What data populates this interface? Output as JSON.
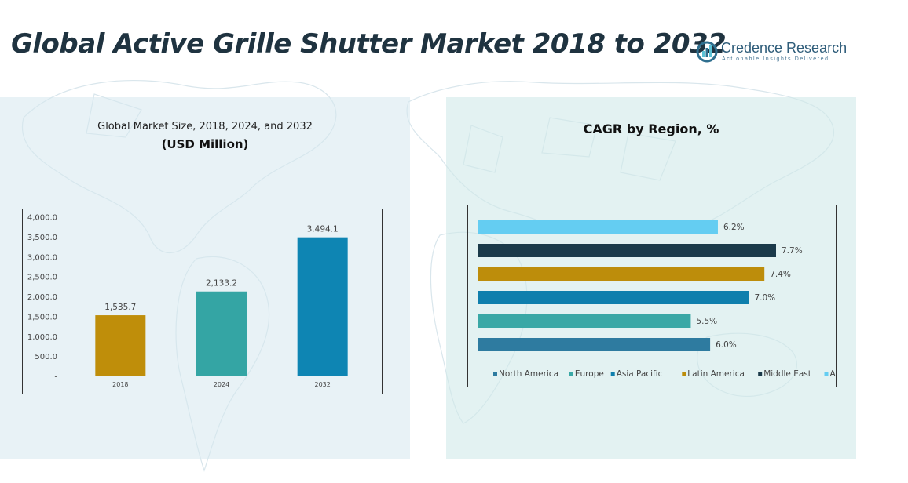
{
  "page": {
    "title": "Global Active Grille Shutter Market 2018 to 2032",
    "brand_name": "Credence Research",
    "brand_tagline": "Actionable Insights Delivered"
  },
  "chart_data": [
    {
      "type": "bar",
      "title": "Global Market Size, 2018, 2024, and 2032",
      "subtitle": "(USD Million)",
      "categories": [
        "2018",
        "2024",
        "2032"
      ],
      "values": [
        1535.7,
        2133.2,
        3494.1
      ],
      "value_labels": [
        "1,535.7",
        "2,133.2",
        "3,494.1"
      ],
      "colors": [
        "#bf8e0a",
        "#34a5a4",
        "#0e85b3"
      ],
      "ylim": [
        0,
        4000
      ],
      "yticks": [
        0,
        500,
        1000,
        1500,
        2000,
        2500,
        3000,
        3500,
        4000
      ],
      "ytick_labels": [
        "-",
        "500.0",
        "1,000.0",
        "1,500.0",
        "2,000.0",
        "2,500.0",
        "3,000.0",
        "3,500.0",
        "4,000.0"
      ],
      "grid": false
    },
    {
      "type": "bar",
      "orientation": "horizontal",
      "title": "CAGR by Region, %",
      "categories": [
        "North America",
        "Europe",
        "Asia Pacific",
        "Latin America",
        "Middle East",
        "Africa"
      ],
      "values": [
        6.0,
        5.5,
        7.0,
        7.4,
        7.7,
        6.2
      ],
      "value_labels": [
        "6.0%",
        "5.5%",
        "7.0%",
        "7.4%",
        "7.7%",
        "6.2%"
      ],
      "colors": [
        "#2e7ba0",
        "#3aa8a6",
        "#0f7fad",
        "#bd8d0b",
        "#1b3a4a",
        "#64cdf2"
      ],
      "legend": "bottom",
      "grid": false
    }
  ]
}
